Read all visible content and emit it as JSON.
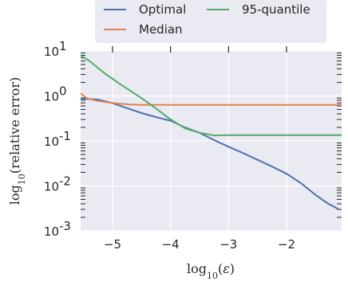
{
  "chart_data": {
    "type": "line",
    "xlabel": "log₁₀(ε)",
    "ylabel": "log₁₀(relative error)",
    "xlim": [
      -5.55,
      -1.05
    ],
    "ylim": [
      -3,
      1
    ],
    "x_scale": "linear",
    "y_scale": "log10 (values shown as exponents)",
    "x_ticks": [
      -5,
      -4,
      -3,
      -2
    ],
    "x_tick_labels": [
      "−5",
      "−4",
      "−3",
      "−2"
    ],
    "y_ticks": [
      -3,
      -2,
      -1,
      0,
      1
    ],
    "y_tick_labels": [
      "10",
      "10",
      "10",
      "10",
      "10"
    ],
    "y_tick_exponents": [
      "-3",
      "-2",
      "-1",
      "0",
      "1"
    ],
    "grid": true,
    "legend_position": "top-center",
    "background": "#eaeaf2",
    "series": [
      {
        "name": "Optimal",
        "color": "#4c72b0",
        "points": [
          [
            -5.55,
            -0.06
          ],
          [
            -5.25,
            -0.08
          ],
          [
            -5.0,
            -0.16
          ],
          [
            -4.75,
            -0.27
          ],
          [
            -4.5,
            -0.38
          ],
          [
            -4.25,
            -0.47
          ],
          [
            -4.0,
            -0.55
          ],
          [
            -3.75,
            -0.7
          ],
          [
            -3.5,
            -0.82
          ],
          [
            -3.25,
            -0.98
          ],
          [
            -3.0,
            -1.13
          ],
          [
            -2.75,
            -1.27
          ],
          [
            -2.5,
            -1.42
          ],
          [
            -2.25,
            -1.57
          ],
          [
            -2.0,
            -1.73
          ],
          [
            -1.75,
            -1.94
          ],
          [
            -1.5,
            -2.2
          ],
          [
            -1.3,
            -2.38
          ],
          [
            -1.1,
            -2.52
          ]
        ]
      },
      {
        "name": "Median",
        "color": "#dd8452",
        "points": [
          [
            -5.55,
            0.06
          ],
          [
            -5.45,
            -0.05
          ],
          [
            -5.3,
            -0.1
          ],
          [
            -5.1,
            -0.14
          ],
          [
            -4.9,
            -0.17
          ],
          [
            -4.7,
            -0.19
          ],
          [
            -4.5,
            -0.2
          ],
          [
            -4.0,
            -0.2
          ],
          [
            -3.0,
            -0.2
          ],
          [
            -2.0,
            -0.2
          ],
          [
            -1.05,
            -0.2
          ]
        ]
      },
      {
        "name": "95-quantile",
        "color": "#55a868",
        "points": [
          [
            -5.55,
            0.9
          ],
          [
            -5.4,
            0.78
          ],
          [
            -5.25,
            0.62
          ],
          [
            -5.1,
            0.47
          ],
          [
            -4.9,
            0.29
          ],
          [
            -4.7,
            0.12
          ],
          [
            -4.5,
            -0.05
          ],
          [
            -4.25,
            -0.28
          ],
          [
            -4.0,
            -0.52
          ],
          [
            -3.75,
            -0.72
          ],
          [
            -3.5,
            -0.82
          ],
          [
            -3.25,
            -0.88
          ],
          [
            -3.0,
            -0.87
          ],
          [
            -2.5,
            -0.87
          ],
          [
            -2.0,
            -0.87
          ],
          [
            -1.05,
            -0.87
          ]
        ]
      }
    ]
  }
}
